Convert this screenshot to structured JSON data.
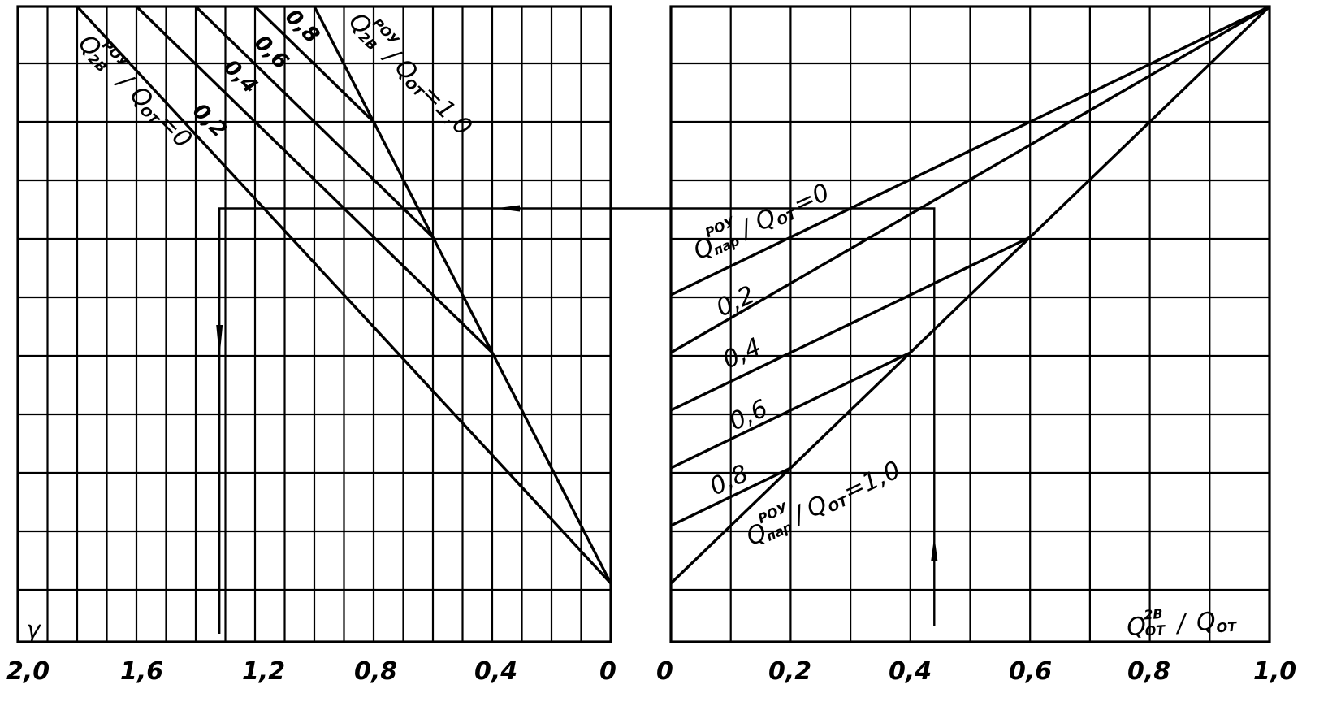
{
  "chart_data": [
    {
      "type": "line",
      "panel": "left",
      "title": "",
      "xlabel": "",
      "ylabel": "γ",
      "x_ticks": [
        "2,0",
        "1,6",
        "1,2",
        "0,8",
        "0,4",
        "0"
      ],
      "xlim": [
        2.0,
        0
      ],
      "ylim": [
        0,
        1
      ],
      "grid": true,
      "series": [
        {
          "name": "0",
          "x": [
            0,
            1.8
          ],
          "y": [
            0.0,
            1.0
          ]
        },
        {
          "name": "0,2",
          "x": [
            0.4,
            1.6
          ],
          "y": [
            0.4,
            1.0
          ]
        },
        {
          "name": "0,4",
          "x": [
            0.6,
            1.4
          ],
          "y": [
            0.6,
            1.0
          ]
        },
        {
          "name": "0,6",
          "x": [
            0.8,
            1.2
          ],
          "y": [
            0.8,
            1.0
          ]
        },
        {
          "name": "0,8",
          "x": [
            0.9,
            1.0
          ],
          "y": [
            0.9,
            1.0
          ]
        },
        {
          "name": "1,0",
          "x": [
            0,
            0.2,
            0.4,
            0.6,
            0.8,
            0.9
          ],
          "y": [
            0.0,
            0.2,
            0.4,
            0.6,
            0.8,
            0.9
          ]
        }
      ],
      "labels": {
        "q": "Q",
        "q_sup": "РОУ",
        "q_sub": "2В",
        "slash": "/",
        "qot": "Q",
        "qot_sub": "ОТ",
        "eq0": "=0",
        "eq1": "=1,0",
        "v02": "0,2",
        "v04": "0,4",
        "v06": "0,6",
        "v08": "0,8"
      }
    },
    {
      "type": "line",
      "panel": "right",
      "title": "",
      "xlabel": "Q2В/QОТ",
      "ylabel": "",
      "x_ticks": [
        "0",
        "0,2",
        "0,4",
        "0,6",
        "0,8",
        "1,0"
      ],
      "xlim": [
        0,
        1.0
      ],
      "ylim": [
        0,
        1
      ],
      "grid": true,
      "series": [
        {
          "name": "0",
          "x": [
            0,
            1.0
          ],
          "y": [
            0.5,
            1.0
          ]
        },
        {
          "name": "0,2",
          "x": [
            0,
            1.0
          ],
          "y": [
            0.4,
            1.0
          ]
        },
        {
          "name": "0,4",
          "x": [
            0,
            0.6
          ],
          "y": [
            0.3,
            0.6
          ]
        },
        {
          "name": "0,6",
          "x": [
            0,
            0.4
          ],
          "y": [
            0.2,
            0.4
          ]
        },
        {
          "name": "0,8",
          "x": [
            0,
            0.2
          ],
          "y": [
            0.1,
            0.2
          ]
        },
        {
          "name": "1,0",
          "x": [
            0,
            0.4,
            0.6,
            0.8,
            1.0
          ],
          "y": [
            0.0,
            0.4,
            0.6,
            0.8,
            1.0
          ]
        }
      ],
      "labels": {
        "q": "Q",
        "q_sup": "РОУ",
        "q_sub": "пар",
        "slash": "/",
        "qot": "Q",
        "qot_sub": "ОТ",
        "eq0": "=0",
        "eq1": "=1,0",
        "v02": "0,2",
        "v04": "0,4",
        "v06": "0,6",
        "v08": "0,8",
        "xq": "Q",
        "xq_sup": "2В",
        "xq_sub": "ОТ",
        "xslash": "/",
        "xqot": "Q",
        "xqot_sub": "ОТ"
      }
    }
  ]
}
